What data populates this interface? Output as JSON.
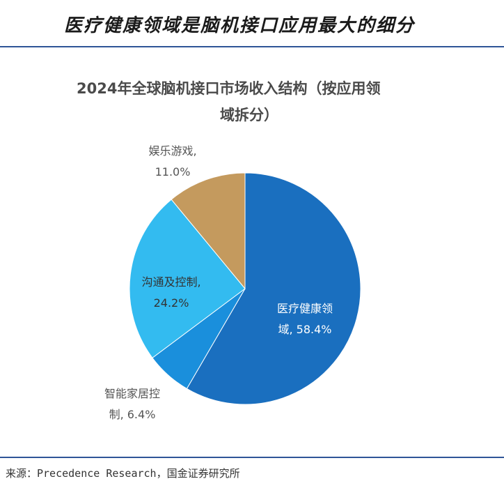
{
  "header": {
    "title": "医疗健康领域是脑机接口应用最大的细分"
  },
  "source_note": "来源：Precedence Research，国金证券研究所",
  "colors": {
    "accent": "#2f5597"
  },
  "chart_data": {
    "type": "pie",
    "title_line1": "2024年全球脑机接口市场收入结构（按应用领",
    "title_line2": "域拆分）",
    "slices": [
      {
        "label_line1": "医疗健康领",
        "label_line2": "域",
        "value": 58.4,
        "pct_label": "58.4%",
        "color": "#1a6fbf"
      },
      {
        "label_line1": "智能家居控",
        "label_line2": "制",
        "value": 6.4,
        "pct_label": "6.4%",
        "color": "#1a8fdc"
      },
      {
        "label_line1": "沟通及控制",
        "label_line2": "",
        "value": 24.2,
        "pct_label": "24.2%",
        "color": "#33bbf0"
      },
      {
        "label_line1": "娱乐游戏",
        "label_line2": "",
        "value": 11.0,
        "pct_label": "11.0%",
        "color": "#c49a5e"
      }
    ]
  }
}
